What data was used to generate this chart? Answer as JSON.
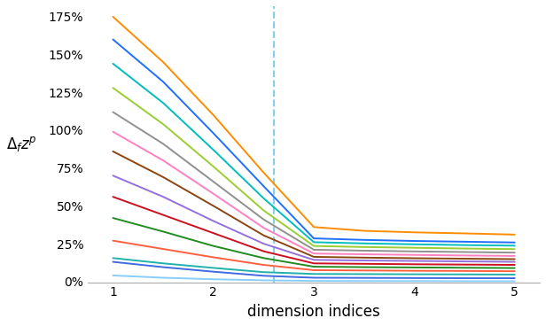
{
  "title": "",
  "xlabel": "dimension indices",
  "xlim": [
    0.75,
    5.25
  ],
  "ylim": [
    -0.005,
    1.82
  ],
  "yticks": [
    0.0,
    0.25,
    0.5,
    0.75,
    1.0,
    1.25,
    1.5,
    1.75
  ],
  "ytick_labels": [
    "0%",
    "25%",
    "50%",
    "75%",
    "100%",
    "125%",
    "150%",
    "175%"
  ],
  "xticks": [
    1,
    2,
    3,
    4,
    5
  ],
  "vline_x": 2.6,
  "vline_color": "#87CEEB",
  "lines": [
    {
      "x": [
        1,
        1.5,
        2,
        2.5,
        3,
        3.5,
        4,
        4.5,
        5
      ],
      "y": [
        1.75,
        1.45,
        1.1,
        0.72,
        0.36,
        0.335,
        0.325,
        0.318,
        0.31
      ],
      "color": "#FF8C00"
    },
    {
      "x": [
        1,
        1.5,
        2,
        2.5,
        3,
        3.5,
        4,
        4.5,
        5
      ],
      "y": [
        1.6,
        1.32,
        0.98,
        0.63,
        0.285,
        0.275,
        0.268,
        0.263,
        0.258
      ],
      "color": "#1E6FFF"
    },
    {
      "x": [
        1,
        1.5,
        2,
        2.5,
        3,
        3.5,
        4,
        4.5,
        5
      ],
      "y": [
        1.44,
        1.18,
        0.87,
        0.55,
        0.26,
        0.252,
        0.246,
        0.241,
        0.237
      ],
      "color": "#00BEBE"
    },
    {
      "x": [
        1,
        1.5,
        2,
        2.5,
        3,
        3.5,
        4,
        4.5,
        5
      ],
      "y": [
        1.28,
        1.04,
        0.76,
        0.47,
        0.235,
        0.228,
        0.223,
        0.218,
        0.214
      ],
      "color": "#9ACD32"
    },
    {
      "x": [
        1,
        1.5,
        2,
        2.5,
        3,
        3.5,
        4,
        4.5,
        5
      ],
      "y": [
        1.12,
        0.91,
        0.66,
        0.41,
        0.21,
        0.204,
        0.199,
        0.195,
        0.191
      ],
      "color": "#909090"
    },
    {
      "x": [
        1,
        1.5,
        2,
        2.5,
        3,
        3.5,
        4,
        4.5,
        5
      ],
      "y": [
        0.99,
        0.8,
        0.58,
        0.355,
        0.185,
        0.18,
        0.176,
        0.172,
        0.169
      ],
      "color": "#FF80C0"
    },
    {
      "x": [
        1,
        1.5,
        2,
        2.5,
        3,
        3.5,
        4,
        4.5,
        5
      ],
      "y": [
        0.86,
        0.69,
        0.5,
        0.305,
        0.163,
        0.158,
        0.154,
        0.151,
        0.148
      ],
      "color": "#8B4513"
    },
    {
      "x": [
        1,
        1.5,
        2,
        2.5,
        3,
        3.5,
        4,
        4.5,
        5
      ],
      "y": [
        0.7,
        0.56,
        0.4,
        0.25,
        0.143,
        0.139,
        0.136,
        0.133,
        0.13
      ],
      "color": "#9370DB"
    },
    {
      "x": [
        1,
        1.5,
        2,
        2.5,
        3,
        3.5,
        4,
        4.5,
        5
      ],
      "y": [
        0.56,
        0.44,
        0.32,
        0.2,
        0.12,
        0.117,
        0.114,
        0.112,
        0.11
      ],
      "color": "#CC1020"
    },
    {
      "x": [
        1,
        1.5,
        2,
        2.5,
        3,
        3.5,
        4,
        4.5,
        5
      ],
      "y": [
        0.42,
        0.33,
        0.235,
        0.155,
        0.098,
        0.095,
        0.093,
        0.091,
        0.089
      ],
      "color": "#228B22"
    },
    {
      "x": [
        1,
        1.5,
        2,
        2.5,
        3,
        3.5,
        4,
        4.5,
        5
      ],
      "y": [
        0.27,
        0.215,
        0.16,
        0.11,
        0.075,
        0.073,
        0.071,
        0.07,
        0.068
      ],
      "color": "#FF6040"
    },
    {
      "x": [
        1,
        1.5,
        2,
        2.5,
        3,
        3.5,
        4,
        4.5,
        5
      ],
      "y": [
        0.155,
        0.12,
        0.09,
        0.062,
        0.05,
        0.049,
        0.048,
        0.047,
        0.046
      ],
      "color": "#20B2AA"
    },
    {
      "x": [
        1,
        1.5,
        2,
        2.5,
        3,
        3.5,
        4,
        4.5,
        5
      ],
      "y": [
        0.13,
        0.095,
        0.065,
        0.038,
        0.025,
        0.024,
        0.023,
        0.022,
        0.022
      ],
      "color": "#4169E1"
    },
    {
      "x": [
        1,
        1.5,
        2,
        2.5,
        3,
        3.5,
        4,
        4.5,
        5
      ],
      "y": [
        0.04,
        0.025,
        0.015,
        0.008,
        0.004,
        0.003,
        0.003,
        0.002,
        0.002
      ],
      "color": "#87CEFA"
    }
  ],
  "figsize": [
    6.16,
    3.68
  ],
  "dpi": 100,
  "background_color": "#FFFFFF",
  "ylabel_fontsize": 12,
  "xlabel_fontsize": 12,
  "tick_fontsize": 10
}
